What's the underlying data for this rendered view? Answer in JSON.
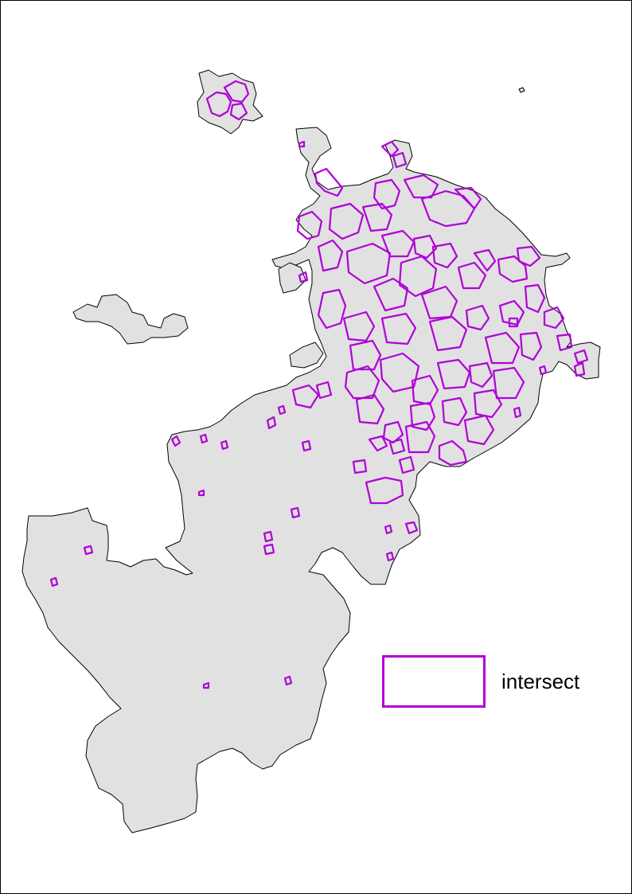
{
  "legend": {
    "label": "intersect"
  },
  "colors": {
    "region_fill": "#e1e1e1",
    "region_outline": "#000000",
    "intersect_outline": "#b000d8",
    "background": "#ffffff"
  },
  "icons": {
    "legend_symbol": "outlined-rectangle"
  }
}
